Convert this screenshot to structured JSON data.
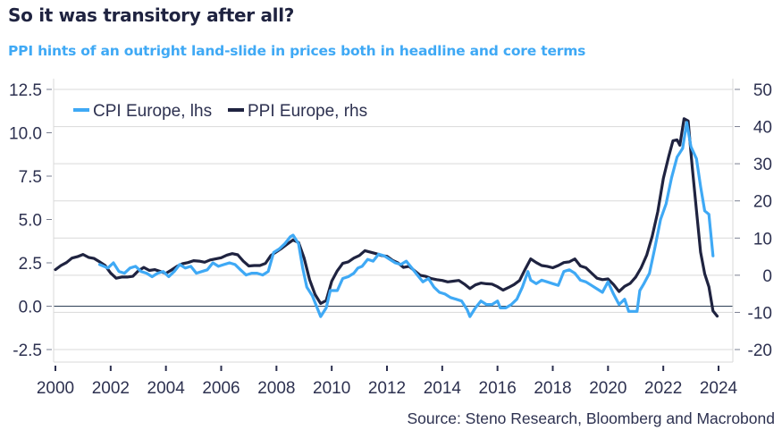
{
  "header": {
    "title": "So it was transitory after all?",
    "subtitle": "PPI hints of an outright land-slide in prices both in headline and core terms"
  },
  "footer": {
    "source": "Source: Steno Research, Bloomberg and Macrobond"
  },
  "colors": {
    "cpi": "#3fa9f5",
    "ppi": "#1f2340",
    "grid": "#d9d9d9",
    "zero_line": "#2d3f55",
    "text": "#2d3150"
  },
  "chart_data": {
    "type": "line",
    "title": "So it was transitory after all?",
    "subtitle": "PPI hints of an outright land-slide in prices both in headline and core terms",
    "xlabel": "",
    "ylabel_left": "",
    "ylabel_right": "",
    "x_range": [
      2000,
      2024.5
    ],
    "x_ticks": [
      2000,
      2002,
      2004,
      2006,
      2008,
      2010,
      2012,
      2014,
      2016,
      2018,
      2020,
      2022,
      2024
    ],
    "x_tick_labels": [
      "2000",
      "2002",
      "2004",
      "2006",
      "2008",
      "2010",
      "2012",
      "2014",
      "2016",
      "2018",
      "2020",
      "2022",
      "2024"
    ],
    "y_left": {
      "range": [
        -2.5,
        12.5
      ],
      "ticks": [
        -2.5,
        0.0,
        2.5,
        5.0,
        7.5,
        10.0,
        12.5
      ],
      "tick_labels": [
        "-2.5",
        "0.0",
        "2.5",
        "5.0",
        "7.5",
        "10.0",
        "12.5"
      ]
    },
    "y_right": {
      "range": [
        -20,
        50
      ],
      "ticks": [
        -20,
        -10,
        0,
        10,
        20,
        30,
        40,
        50
      ],
      "tick_labels": [
        "-20",
        "-10",
        "0",
        "10",
        "20",
        "30",
        "40",
        "50"
      ]
    },
    "grid": "horizontal, aligned to right axis",
    "zero_line": "left axis 0.0",
    "legend_position": "top-left",
    "series": [
      {
        "name": "CPI Europe, lhs",
        "axis": "left",
        "points": [
          [
            2001.6,
            2.4
          ],
          [
            2001.9,
            2.2
          ],
          [
            2002.1,
            2.5
          ],
          [
            2002.3,
            2.0
          ],
          [
            2002.5,
            1.9
          ],
          [
            2002.7,
            2.2
          ],
          [
            2002.9,
            2.3
          ],
          [
            2003.1,
            2.0
          ],
          [
            2003.3,
            1.9
          ],
          [
            2003.5,
            1.7
          ],
          [
            2003.7,
            1.9
          ],
          [
            2003.9,
            2.0
          ],
          [
            2004.1,
            1.7
          ],
          [
            2004.3,
            2.0
          ],
          [
            2004.5,
            2.4
          ],
          [
            2004.7,
            2.2
          ],
          [
            2004.9,
            2.3
          ],
          [
            2005.1,
            1.9
          ],
          [
            2005.3,
            2.0
          ],
          [
            2005.5,
            2.1
          ],
          [
            2005.7,
            2.5
          ],
          [
            2005.9,
            2.3
          ],
          [
            2006.1,
            2.4
          ],
          [
            2006.3,
            2.5
          ],
          [
            2006.5,
            2.4
          ],
          [
            2006.7,
            2.1
          ],
          [
            2006.9,
            1.8
          ],
          [
            2007.1,
            1.9
          ],
          [
            2007.3,
            1.9
          ],
          [
            2007.5,
            1.8
          ],
          [
            2007.7,
            2.0
          ],
          [
            2007.9,
            3.1
          ],
          [
            2008.1,
            3.3
          ],
          [
            2008.3,
            3.6
          ],
          [
            2008.5,
            4.0
          ],
          [
            2008.6,
            4.1
          ],
          [
            2008.8,
            3.6
          ],
          [
            2008.95,
            2.2
          ],
          [
            2009.1,
            1.1
          ],
          [
            2009.3,
            0.6
          ],
          [
            2009.5,
            -0.2
          ],
          [
            2009.6,
            -0.6
          ],
          [
            2009.8,
            -0.1
          ],
          [
            2009.95,
            0.9
          ],
          [
            2010.2,
            0.9
          ],
          [
            2010.4,
            1.6
          ],
          [
            2010.6,
            1.7
          ],
          [
            2010.8,
            1.9
          ],
          [
            2010.95,
            2.2
          ],
          [
            2011.1,
            2.3
          ],
          [
            2011.3,
            2.7
          ],
          [
            2011.5,
            2.6
          ],
          [
            2011.7,
            3.0
          ],
          [
            2011.9,
            2.9
          ],
          [
            2012.1,
            2.7
          ],
          [
            2012.3,
            2.5
          ],
          [
            2012.5,
            2.4
          ],
          [
            2012.7,
            2.6
          ],
          [
            2012.9,
            2.2
          ],
          [
            2013.1,
            1.8
          ],
          [
            2013.3,
            1.4
          ],
          [
            2013.5,
            1.6
          ],
          [
            2013.7,
            1.1
          ],
          [
            2013.9,
            0.8
          ],
          [
            2014.1,
            0.7
          ],
          [
            2014.3,
            0.5
          ],
          [
            2014.5,
            0.4
          ],
          [
            2014.7,
            0.3
          ],
          [
            2014.9,
            -0.2
          ],
          [
            2015.0,
            -0.6
          ],
          [
            2015.2,
            -0.1
          ],
          [
            2015.4,
            0.3
          ],
          [
            2015.6,
            0.1
          ],
          [
            2015.8,
            0.1
          ],
          [
            2016.0,
            0.3
          ],
          [
            2016.1,
            -0.1
          ],
          [
            2016.3,
            -0.1
          ],
          [
            2016.5,
            0.1
          ],
          [
            2016.7,
            0.4
          ],
          [
            2016.9,
            1.1
          ],
          [
            2017.1,
            2.0
          ],
          [
            2017.2,
            1.5
          ],
          [
            2017.4,
            1.3
          ],
          [
            2017.6,
            1.5
          ],
          [
            2017.8,
            1.4
          ],
          [
            2018.0,
            1.3
          ],
          [
            2018.2,
            1.2
          ],
          [
            2018.4,
            2.0
          ],
          [
            2018.6,
            2.1
          ],
          [
            2018.8,
            1.9
          ],
          [
            2019.0,
            1.5
          ],
          [
            2019.2,
            1.4
          ],
          [
            2019.4,
            1.2
          ],
          [
            2019.6,
            1.0
          ],
          [
            2019.8,
            0.8
          ],
          [
            2020.0,
            1.4
          ],
          [
            2020.2,
            0.7
          ],
          [
            2020.4,
            0.1
          ],
          [
            2020.6,
            0.4
          ],
          [
            2020.75,
            -0.3
          ],
          [
            2020.9,
            -0.3
          ],
          [
            2021.05,
            -0.3
          ],
          [
            2021.15,
            0.9
          ],
          [
            2021.3,
            1.3
          ],
          [
            2021.5,
            1.9
          ],
          [
            2021.7,
            3.4
          ],
          [
            2021.9,
            5.0
          ],
          [
            2022.1,
            5.9
          ],
          [
            2022.3,
            7.4
          ],
          [
            2022.5,
            8.6
          ],
          [
            2022.7,
            9.1
          ],
          [
            2022.85,
            10.6
          ],
          [
            2023.0,
            9.2
          ],
          [
            2023.2,
            8.5
          ],
          [
            2023.35,
            6.9
          ],
          [
            2023.5,
            5.5
          ],
          [
            2023.65,
            5.3
          ],
          [
            2023.8,
            2.9
          ]
        ]
      },
      {
        "name": "PPI Europe, rhs",
        "axis": "right",
        "points": [
          [
            2000.0,
            1.5
          ],
          [
            2000.2,
            2.6
          ],
          [
            2000.4,
            3.4
          ],
          [
            2000.6,
            4.6
          ],
          [
            2000.8,
            5.0
          ],
          [
            2001.0,
            5.6
          ],
          [
            2001.2,
            4.8
          ],
          [
            2001.4,
            4.5
          ],
          [
            2001.6,
            3.6
          ],
          [
            2001.8,
            2.6
          ],
          [
            2002.0,
            0.6
          ],
          [
            2002.2,
            -0.8
          ],
          [
            2002.4,
            -0.5
          ],
          [
            2002.6,
            -0.5
          ],
          [
            2002.8,
            -0.3
          ],
          [
            2003.0,
            1.2
          ],
          [
            2003.2,
            2.1
          ],
          [
            2003.4,
            1.3
          ],
          [
            2003.6,
            1.5
          ],
          [
            2003.8,
            1.0
          ],
          [
            2004.0,
            0.5
          ],
          [
            2004.2,
            1.4
          ],
          [
            2004.4,
            2.4
          ],
          [
            2004.6,
            3.1
          ],
          [
            2004.8,
            3.4
          ],
          [
            2005.0,
            3.9
          ],
          [
            2005.2,
            3.8
          ],
          [
            2005.4,
            3.5
          ],
          [
            2005.6,
            4.1
          ],
          [
            2005.8,
            4.4
          ],
          [
            2006.0,
            4.7
          ],
          [
            2006.2,
            5.4
          ],
          [
            2006.4,
            5.8
          ],
          [
            2006.6,
            5.5
          ],
          [
            2006.8,
            3.8
          ],
          [
            2007.0,
            2.5
          ],
          [
            2007.2,
            2.6
          ],
          [
            2007.4,
            2.6
          ],
          [
            2007.6,
            3.2
          ],
          [
            2007.8,
            5.3
          ],
          [
            2008.0,
            6.3
          ],
          [
            2008.2,
            7.3
          ],
          [
            2008.4,
            8.4
          ],
          [
            2008.6,
            9.5
          ],
          [
            2008.8,
            8.8
          ],
          [
            2009.0,
            4.6
          ],
          [
            2009.2,
            -1.2
          ],
          [
            2009.4,
            -5.2
          ],
          [
            2009.6,
            -7.6
          ],
          [
            2009.8,
            -6.8
          ],
          [
            2010.0,
            -1.6
          ],
          [
            2010.2,
            1.2
          ],
          [
            2010.4,
            3.2
          ],
          [
            2010.6,
            3.6
          ],
          [
            2010.8,
            4.6
          ],
          [
            2011.0,
            5.3
          ],
          [
            2011.2,
            6.6
          ],
          [
            2011.4,
            6.2
          ],
          [
            2011.6,
            5.8
          ],
          [
            2011.8,
            5.3
          ],
          [
            2012.0,
            5.1
          ],
          [
            2012.2,
            4.0
          ],
          [
            2012.4,
            3.3
          ],
          [
            2012.6,
            2.1
          ],
          [
            2012.8,
            2.4
          ],
          [
            2013.0,
            1.2
          ],
          [
            2013.2,
            0.0
          ],
          [
            2013.4,
            -0.3
          ],
          [
            2013.6,
            -0.9
          ],
          [
            2013.8,
            -1.2
          ],
          [
            2014.0,
            -1.4
          ],
          [
            2014.2,
            -1.8
          ],
          [
            2014.4,
            -1.6
          ],
          [
            2014.6,
            -1.4
          ],
          [
            2014.8,
            -2.4
          ],
          [
            2015.0,
            -3.6
          ],
          [
            2015.2,
            -2.6
          ],
          [
            2015.4,
            -2.1
          ],
          [
            2015.6,
            -2.3
          ],
          [
            2015.8,
            -2.4
          ],
          [
            2016.0,
            -3.1
          ],
          [
            2016.2,
            -4.0
          ],
          [
            2016.4,
            -3.3
          ],
          [
            2016.6,
            -2.5
          ],
          [
            2016.8,
            -1.4
          ],
          [
            2017.0,
            1.6
          ],
          [
            2017.2,
            4.4
          ],
          [
            2017.4,
            3.4
          ],
          [
            2017.6,
            2.6
          ],
          [
            2017.8,
            2.4
          ],
          [
            2018.0,
            2.0
          ],
          [
            2018.2,
            2.6
          ],
          [
            2018.4,
            3.4
          ],
          [
            2018.6,
            3.6
          ],
          [
            2018.8,
            4.4
          ],
          [
            2019.0,
            2.5
          ],
          [
            2019.2,
            2.0
          ],
          [
            2019.4,
            0.6
          ],
          [
            2019.6,
            -0.8
          ],
          [
            2019.8,
            -1.2
          ],
          [
            2020.0,
            -1.0
          ],
          [
            2020.2,
            -2.5
          ],
          [
            2020.4,
            -4.4
          ],
          [
            2020.6,
            -3.0
          ],
          [
            2020.8,
            -2.2
          ],
          [
            2021.0,
            -0.5
          ],
          [
            2021.2,
            2.0
          ],
          [
            2021.4,
            5.4
          ],
          [
            2021.6,
            10.5
          ],
          [
            2021.8,
            17.1
          ],
          [
            2022.0,
            26.0
          ],
          [
            2022.2,
            32.1
          ],
          [
            2022.35,
            36.2
          ],
          [
            2022.5,
            36.4
          ],
          [
            2022.6,
            35.0
          ],
          [
            2022.75,
            42.1
          ],
          [
            2022.9,
            41.5
          ],
          [
            2023.05,
            29.0
          ],
          [
            2023.2,
            17.4
          ],
          [
            2023.35,
            6.2
          ],
          [
            2023.5,
            0.4
          ],
          [
            2023.65,
            -3.1
          ],
          [
            2023.8,
            -9.6
          ],
          [
            2023.95,
            -11.0
          ]
        ]
      }
    ],
    "legend": [
      "CPI Europe, lhs",
      "PPI Europe, rhs"
    ]
  }
}
